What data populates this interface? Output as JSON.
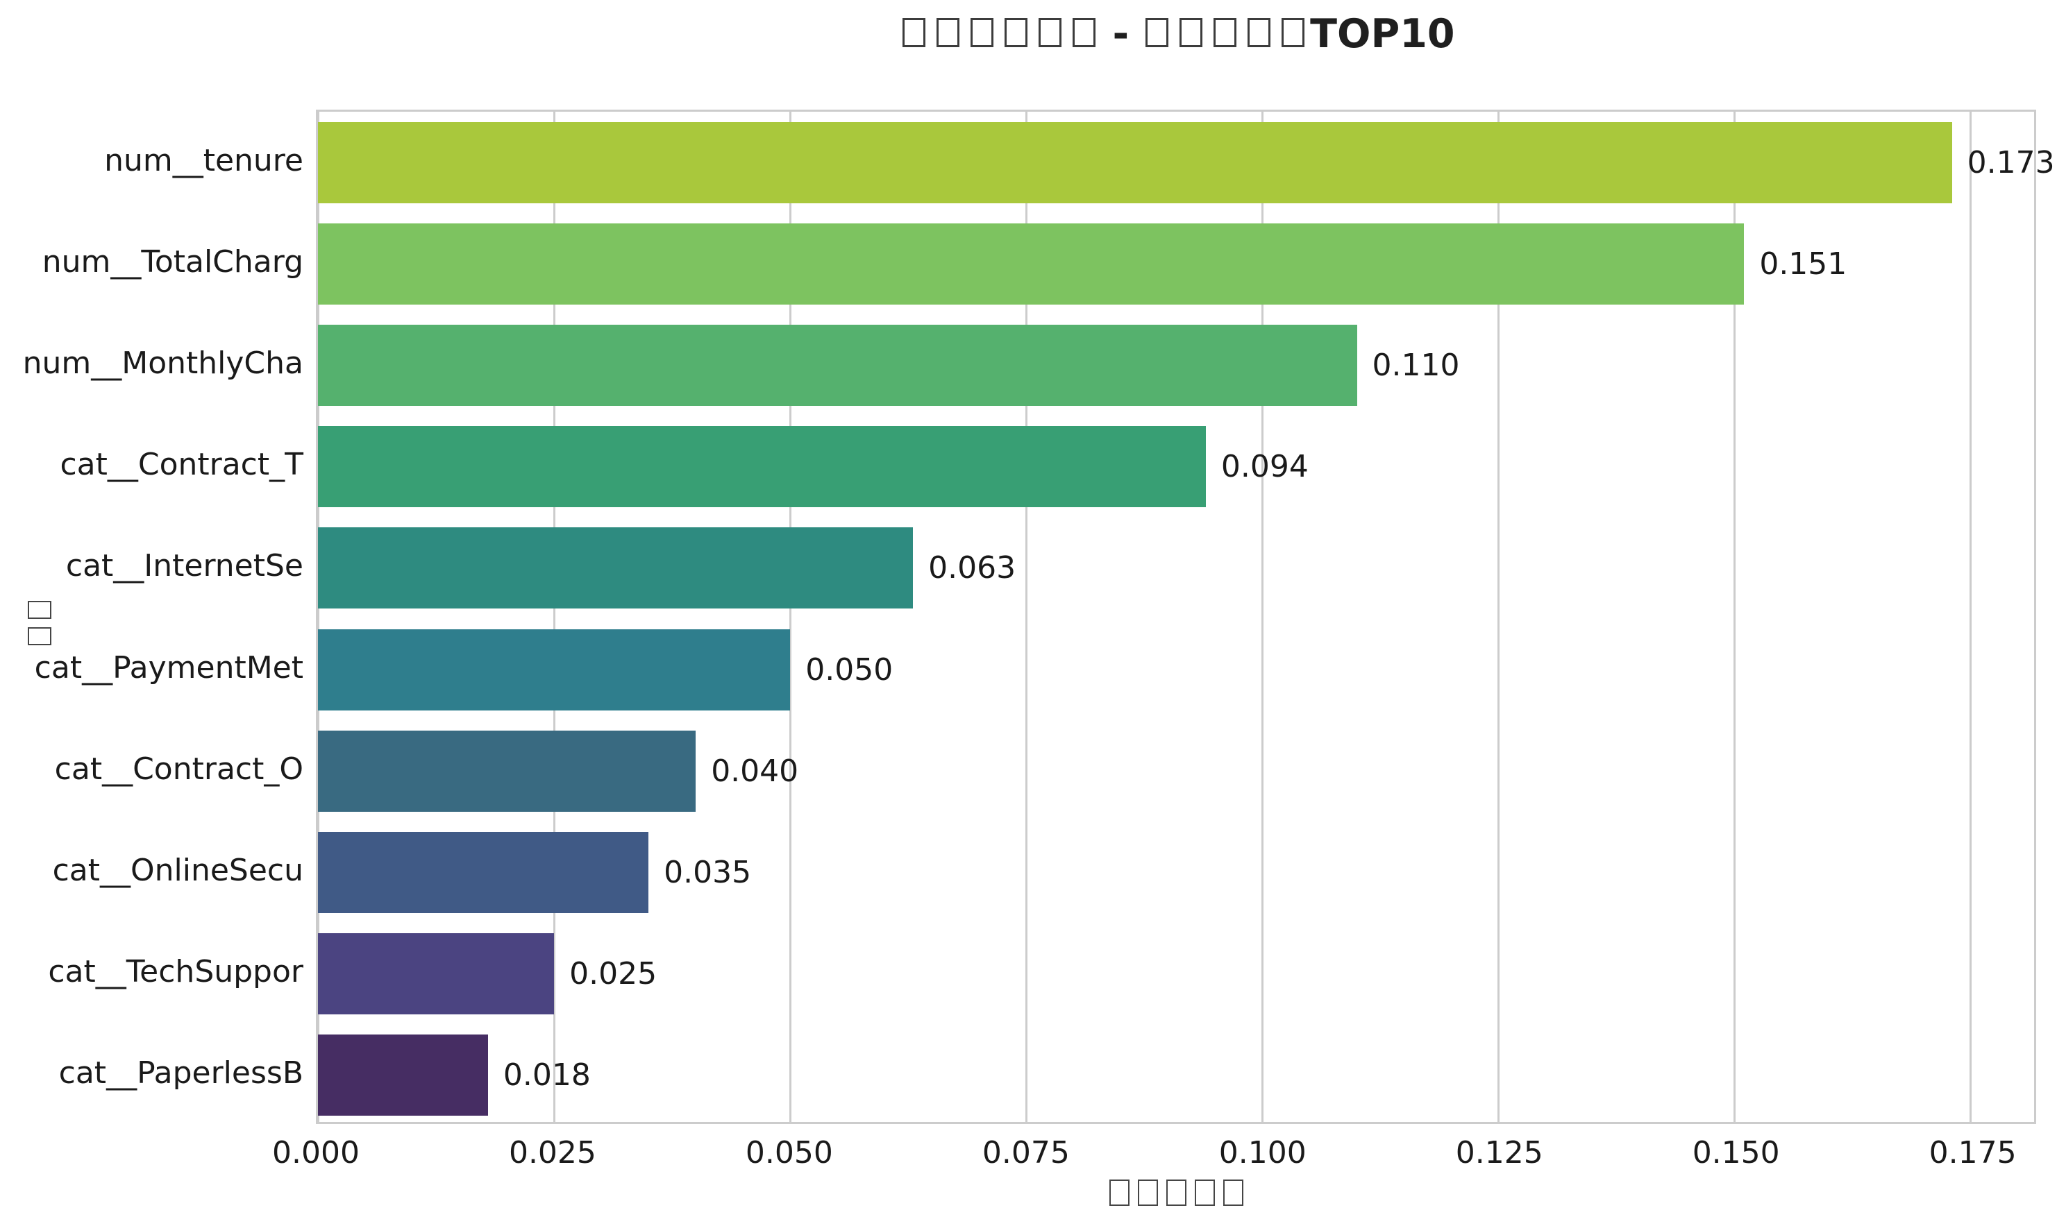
{
  "title": {
    "prefix_box_count": 6,
    "separator": "-",
    "mid_box_count": 5,
    "suffix": "TOP10",
    "full_text": "□□□□□□ - □□□□□TOP10"
  },
  "axes": {
    "x_label_box_count": 5,
    "y_label_box_count": 2,
    "x_label_text": "□□□□□",
    "y_label_text": "□□"
  },
  "colors": {
    "frame": "#cccccc",
    "grid": "#cccccc",
    "text": "#1a1a1a",
    "background": "#ffffff"
  },
  "chart_data": {
    "type": "bar",
    "orientation": "horizontal",
    "title": "□□□□□□ - □□□□□TOP10",
    "xlabel": "□□□□□",
    "ylabel": "□□",
    "categories": [
      "num__tenure",
      "num__TotalCharg",
      "num__MonthlyCha",
      "cat__Contract_T",
      "cat__InternetSe",
      "cat__PaymentMet",
      "cat__Contract_O",
      "cat__OnlineSecu",
      "cat__TechSuppor",
      "cat__PaperlessB"
    ],
    "values": [
      0.173,
      0.151,
      0.11,
      0.094,
      0.063,
      0.05,
      0.04,
      0.035,
      0.025,
      0.018
    ],
    "value_labels": [
      "0.173",
      "0.151",
      "0.110",
      "0.094",
      "0.063",
      "0.050",
      "0.040",
      "0.035",
      "0.025",
      "0.018"
    ],
    "bar_colors": [
      "#a9c83c",
      "#7dc360",
      "#55b16e",
      "#389f74",
      "#2e8b80",
      "#2f7e8d",
      "#396a81",
      "#405a86",
      "#4b4481",
      "#462d63"
    ],
    "x_tick_values": [
      0.0,
      0.025,
      0.05,
      0.075,
      0.1,
      0.125,
      0.15,
      0.175
    ],
    "x_tick_labels": [
      "0.000",
      "0.025",
      "0.050",
      "0.075",
      "0.100",
      "0.125",
      "0.150",
      "0.175"
    ],
    "xlim": [
      0,
      0.1817
    ],
    "grid": true,
    "legend": false,
    "bar_fraction": 0.8
  }
}
